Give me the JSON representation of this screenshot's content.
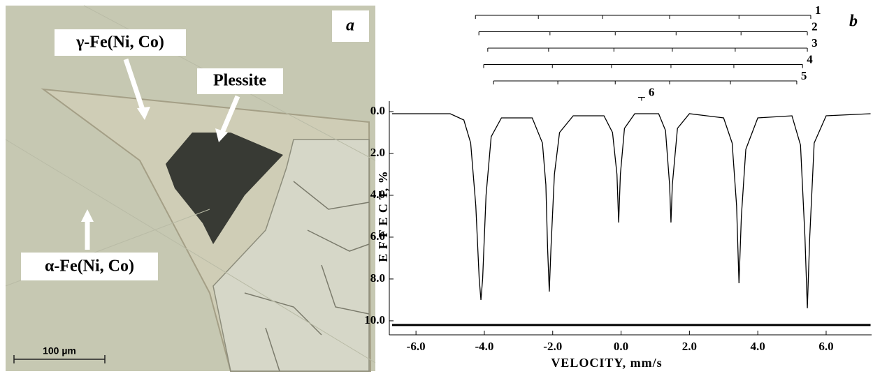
{
  "panel_a": {
    "label": "a",
    "labels": [
      "γ-Fe(Ni, Co)",
      "Plessite",
      "α-Fe(Ni, Co)"
    ],
    "scale_bar": "100 µm"
  },
  "chart_data": {
    "type": "line",
    "panel_label": "b",
    "xlabel": "VELOCITY,  mm/s",
    "ylabel": "E F F E C T,  %",
    "xlim": [
      -6.78,
      7.33
    ],
    "ylim": [
      -0.5,
      10.67
    ],
    "y_inverted": true,
    "xticks": [
      {
        "value": -6,
        "label": "-6.0"
      },
      {
        "value": -4,
        "label": "-4.0"
      },
      {
        "value": -2,
        "label": "-2.0"
      },
      {
        "value": 0,
        "label": "0.0"
      },
      {
        "value": 2,
        "label": "2.0"
      },
      {
        "value": 4,
        "label": "4.0"
      },
      {
        "value": 6,
        "label": "6.0"
      }
    ],
    "yticks": [
      {
        "value": 0,
        "label": "0.0"
      },
      {
        "value": 2,
        "label": "2.0"
      },
      {
        "value": 4,
        "label": "4.0"
      },
      {
        "value": 6,
        "label": "6.0"
      },
      {
        "value": 8,
        "label": "8.0"
      },
      {
        "value": 10,
        "label": "10.0"
      }
    ],
    "x": [
      -6.7,
      -5.0,
      -4.6,
      -4.4,
      -4.25,
      -4.15,
      -4.1,
      -4.05,
      -3.95,
      -3.8,
      -3.5,
      -2.6,
      -2.3,
      -2.2,
      -2.15,
      -2.1,
      -2.05,
      -1.95,
      -1.8,
      -1.4,
      -0.5,
      -0.25,
      -0.12,
      -0.07,
      -0.02,
      0.1,
      0.4,
      1.1,
      1.3,
      1.42,
      1.46,
      1.5,
      1.65,
      2.0,
      3.0,
      3.25,
      3.38,
      3.45,
      3.52,
      3.65,
      4.0,
      5.0,
      5.25,
      5.38,
      5.45,
      5.52,
      5.65,
      6.0,
      7.3
    ],
    "series": [
      {
        "color": "#000000",
        "values": [
          0.1,
          0.1,
          0.4,
          1.5,
          4.5,
          8.0,
          9.0,
          8.0,
          4.0,
          1.2,
          0.3,
          0.3,
          1.5,
          3.5,
          6.5,
          8.6,
          6.5,
          3.0,
          1.0,
          0.2,
          0.2,
          1.0,
          3.0,
          5.3,
          3.0,
          0.8,
          0.1,
          0.1,
          0.9,
          3.5,
          5.3,
          3.5,
          0.8,
          0.1,
          0.3,
          1.5,
          4.5,
          8.2,
          5.0,
          1.8,
          0.3,
          0.2,
          1.6,
          6.0,
          9.4,
          6.0,
          1.5,
          0.2,
          0.1
        ]
      }
    ],
    "residual": {
      "x": [
        -6.7,
        0,
        7.3
      ],
      "values": [
        10.2,
        10.2,
        10.2
      ]
    },
    "sextets": [
      {
        "label": "1",
        "lines": [
          -4.26,
          -2.42,
          -0.54,
          1.42,
          3.45,
          5.55
        ]
      },
      {
        "label": "2",
        "lines": [
          -4.16,
          -2.08,
          -0.17,
          1.61,
          3.51,
          5.45
        ]
      },
      {
        "label": "3",
        "lines": [
          -3.9,
          -2.12,
          -0.21,
          1.5,
          3.34,
          5.45
        ]
      },
      {
        "label": "4",
        "lines": [
          -4.02,
          -2.01,
          -0.28,
          1.46,
          3.3,
          5.31
        ]
      },
      {
        "label": "5",
        "lines": [
          -3.73,
          -1.85,
          -0.17,
          1.42,
          3.2,
          5.14
        ]
      },
      {
        "label": "6",
        "lines": [
          0.6
        ]
      }
    ]
  }
}
